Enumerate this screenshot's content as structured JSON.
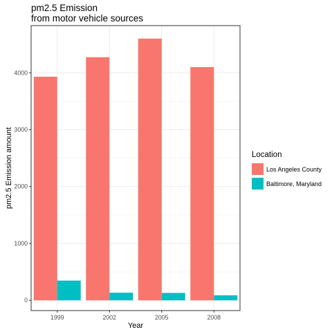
{
  "chart_data": {
    "type": "bar",
    "title": "pm2.5 Emission",
    "subtitle": "from motor vehicle sources",
    "xlabel": "Year",
    "ylabel": "pm2.5 Emission amount",
    "categories": [
      "1999",
      "2002",
      "2005",
      "2008"
    ],
    "series": [
      {
        "name": "Los Angeles County",
        "color": "#F8766D",
        "values": [
          3931,
          4274,
          4601,
          4101
        ]
      },
      {
        "name": "Baltimore, Maryland",
        "color": "#00BFC4",
        "values": [
          347,
          134,
          130,
          88
        ]
      }
    ],
    "ylim": [
      -180,
      4830
    ],
    "yticks": [
      0,
      1000,
      2000,
      3000,
      4000
    ],
    "ytick_labels": [
      "0",
      "1000",
      "2000",
      "3000",
      "4000"
    ],
    "grid": true,
    "legend": {
      "title": "Location",
      "position": "right"
    }
  }
}
